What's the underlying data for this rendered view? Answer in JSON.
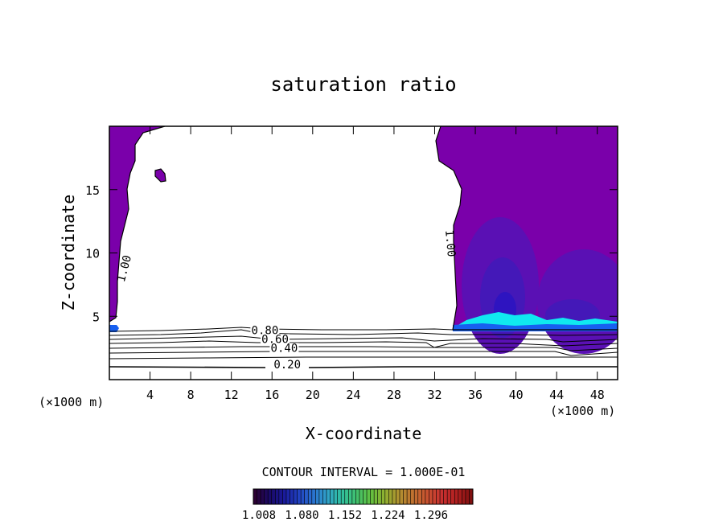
{
  "chart_data": {
    "type": "contour",
    "title": "saturation ratio",
    "xlabel": "X-coordinate",
    "ylabel": "Z-coordinate",
    "x_unit": "(×1000 m)",
    "x_unit_right": "(×1000 m)",
    "xlim": [
      0,
      50
    ],
    "ylim": [
      0,
      20
    ],
    "x_ticks": [
      4,
      8,
      12,
      16,
      20,
      24,
      28,
      32,
      36,
      40,
      44,
      48
    ],
    "y_ticks": [
      5,
      10,
      15
    ],
    "contour_interval_label": "CONTOUR INTERVAL = 1.000E-01",
    "contour_labels": [
      {
        "text": "1.00",
        "x": 1.5,
        "z": 8.5,
        "angle": -75
      },
      {
        "text": "1.00",
        "x": 33.5,
        "z": 10.5,
        "angle": 85
      },
      {
        "text": "0.80",
        "x": 15.3,
        "z": 3.6,
        "angle": 0
      },
      {
        "text": "0.60",
        "x": 16.3,
        "z": 2.9,
        "angle": 0
      },
      {
        "text": "0.40",
        "x": 17.2,
        "z": 2.2,
        "angle": 0
      },
      {
        "text": "0.20",
        "x": 17.5,
        "z": 0.9,
        "angle": 0
      }
    ],
    "colorbar": {
      "labels": [
        "1.008",
        "1.080",
        "1.152",
        "1.224",
        "1.296"
      ],
      "colors": [
        "#2b0033",
        "#1a0a66",
        "#1a1a9a",
        "#2040c0",
        "#2a70d0",
        "#30a0c8",
        "#30c0a0",
        "#40c070",
        "#60c040",
        "#90b030",
        "#b09030",
        "#c07030",
        "#c85030",
        "#c83030",
        "#b02020",
        "#801010"
      ]
    },
    "colors": {
      "supersaturated": "#7a00aa",
      "deep": "#5a10b4",
      "deeper": "#4418b8",
      "deepest": "#2e14c0",
      "cyan": "#10e8f0",
      "blue": "#1860f0"
    }
  }
}
